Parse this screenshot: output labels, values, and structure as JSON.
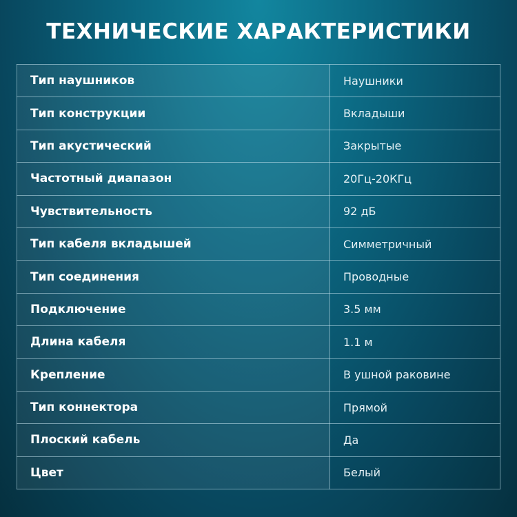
{
  "title": "ТЕХНИЧЕСКИЕ ХАРАКТЕРИСТИКИ",
  "specs": [
    {
      "label": "Тип наушников",
      "value": "Наушники"
    },
    {
      "label": "Тип конструкции",
      "value": "Вкладыши"
    },
    {
      "label": "Тип акустический",
      "value": "Закрытые"
    },
    {
      "label": "Частотный диапазон",
      "value": "20Гц-20КГц"
    },
    {
      "label": "Чувствительность",
      "value": "92 дБ"
    },
    {
      "label": "Тип кабеля вкладышей",
      "value": "Симметричный"
    },
    {
      "label": "Тип соединения",
      "value": "Проводные"
    },
    {
      "label": "Подключение",
      "value": "3.5 мм"
    },
    {
      "label": "Длина кабеля",
      "value": "1.1 м"
    },
    {
      "label": "Крепление",
      "value": "В ушной раковине"
    },
    {
      "label": "Тип коннектора",
      "value": "Прямой"
    },
    {
      "label": "Плоский кабель",
      "value": "Да"
    },
    {
      "label": "Цвет",
      "value": "Белый"
    }
  ]
}
